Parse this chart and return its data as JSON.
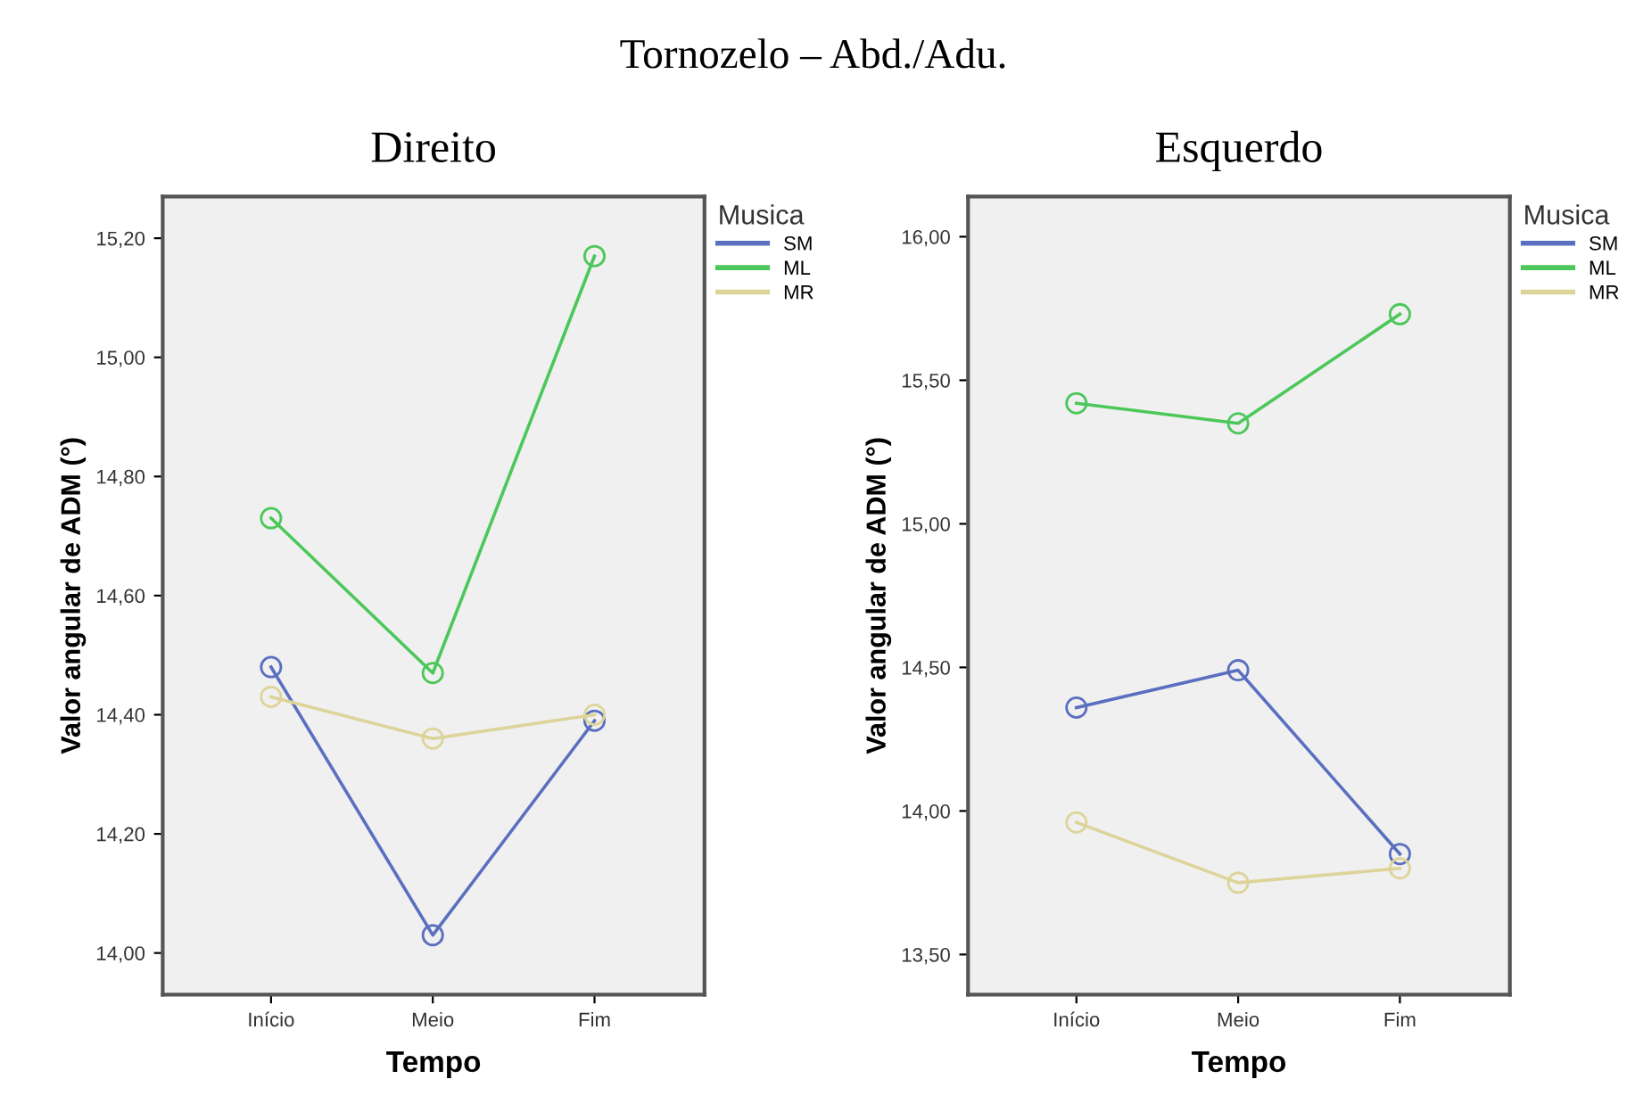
{
  "chart_data": [
    {
      "type": "line",
      "title": "Direito",
      "subtitle": "Tornozelo – Abd./Adu.",
      "xlabel": "Tempo",
      "ylabel": "Valor angular de ADM (°)",
      "legend_title": "Musica",
      "legend": "right",
      "marker": "circle",
      "line_style": "solid",
      "grid": false,
      "categories": [
        "Início",
        "Meio",
        "Fim"
      ],
      "ylim": [
        13.93,
        15.27
      ],
      "yticks": [
        {
          "value": 14.0,
          "label": "14,00"
        },
        {
          "value": 14.2,
          "label": "14,20"
        },
        {
          "value": 14.4,
          "label": "14,40"
        },
        {
          "value": 14.6,
          "label": "14,60"
        },
        {
          "value": 14.8,
          "label": "14,80"
        },
        {
          "value": 15.0,
          "label": "15,00"
        },
        {
          "value": 15.2,
          "label": "15,20"
        }
      ],
      "series": [
        {
          "name": "SM",
          "color": "#5a6fc0",
          "values": [
            14.48,
            14.03,
            14.39
          ]
        },
        {
          "name": "ML",
          "color": "#4cc75a",
          "values": [
            14.73,
            14.47,
            15.17
          ]
        },
        {
          "name": "MR",
          "color": "#ddd49a",
          "values": [
            14.43,
            14.36,
            14.4
          ]
        }
      ]
    },
    {
      "type": "line",
      "title": "Esquerdo",
      "xlabel": "Tempo",
      "ylabel": "Valor angular de ADM (°)",
      "legend_title": "Musica",
      "legend": "right",
      "marker": "circle",
      "line_style": "solid",
      "grid": false,
      "categories": [
        "Início",
        "Meio",
        "Fim"
      ],
      "ylim": [
        13.36,
        16.14
      ],
      "yticks": [
        {
          "value": 13.5,
          "label": "13,50"
        },
        {
          "value": 14.0,
          "label": "14,00"
        },
        {
          "value": 14.5,
          "label": "14,50"
        },
        {
          "value": 15.0,
          "label": "15,00"
        },
        {
          "value": 15.5,
          "label": "15,50"
        },
        {
          "value": 16.0,
          "label": "16,00"
        }
      ],
      "series": [
        {
          "name": "SM",
          "color": "#5a6fc0",
          "values": [
            14.36,
            14.49,
            13.85
          ]
        },
        {
          "name": "ML",
          "color": "#4cc75a",
          "values": [
            15.42,
            15.35,
            15.73
          ]
        },
        {
          "name": "MR",
          "color": "#ddd49a",
          "values": [
            13.96,
            13.75,
            13.8
          ]
        }
      ]
    }
  ]
}
